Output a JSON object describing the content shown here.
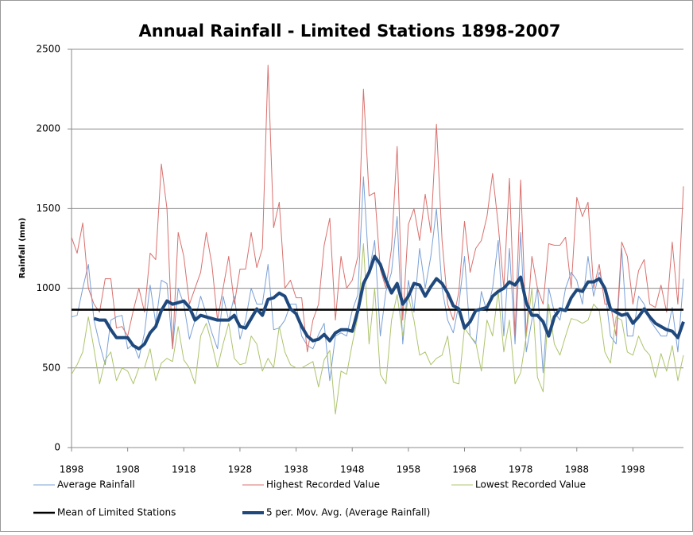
{
  "chart_data": {
    "type": "line",
    "title": "Annual Rainfall - Limited Stations 1898-2007",
    "y_label": "Rainfall (mm)",
    "x": [
      1898,
      1899,
      1900,
      1901,
      1902,
      1903,
      1904,
      1905,
      1906,
      1907,
      1908,
      1909,
      1910,
      1911,
      1912,
      1913,
      1914,
      1915,
      1916,
      1917,
      1918,
      1919,
      1920,
      1921,
      1922,
      1923,
      1924,
      1925,
      1926,
      1927,
      1928,
      1929,
      1930,
      1931,
      1932,
      1933,
      1934,
      1935,
      1936,
      1937,
      1938,
      1939,
      1940,
      1941,
      1942,
      1943,
      1944,
      1945,
      1946,
      1947,
      1948,
      1949,
      1950,
      1951,
      1952,
      1953,
      1954,
      1955,
      1956,
      1957,
      1958,
      1959,
      1960,
      1961,
      1962,
      1963,
      1964,
      1965,
      1966,
      1967,
      1968,
      1969,
      1970,
      1971,
      1972,
      1973,
      1974,
      1975,
      1976,
      1977,
      1978,
      1979,
      1980,
      1981,
      1982,
      1983,
      1984,
      1985,
      1986,
      1987,
      1988,
      1989,
      1990,
      1991,
      1992,
      1993,
      1994,
      1995,
      1996,
      1997,
      1998,
      1999,
      2000,
      2001,
      2002,
      2003,
      2004,
      2005,
      2006,
      2007
    ],
    "xlim": [
      1898,
      2007
    ],
    "xticks": [
      1898,
      1908,
      1918,
      1928,
      1938,
      1948,
      1958,
      1968,
      1978,
      1988,
      1998
    ],
    "ylim": [
      0,
      2500
    ],
    "yticks": [
      0,
      500,
      1000,
      1500,
      2000,
      2500
    ],
    "grid": true,
    "series": [
      {
        "name": "Average Rainfall",
        "color": "#7aa0d6",
        "line_width": 1,
        "values": [
          820,
          830,
          1000,
          1150,
          800,
          650,
          520,
          800,
          820,
          830,
          620,
          650,
          560,
          720,
          1020,
          780,
          1050,
          1030,
          620,
          1000,
          900,
          680,
          800,
          950,
          840,
          720,
          620,
          950,
          800,
          950,
          680,
          800,
          1000,
          900,
          900,
          1150,
          740,
          750,
          800,
          900,
          900,
          700,
          640,
          620,
          710,
          780,
          420,
          700,
          720,
          700,
          860,
          960,
          1700,
          1100,
          1300,
          700,
          980,
          1100,
          1450,
          650,
          1050,
          850,
          1250,
          1000,
          1200,
          1500,
          1000,
          800,
          720,
          900,
          1200,
          700,
          650,
          980,
          850,
          1000,
          1300,
          700,
          1250,
          650,
          1350,
          600,
          800,
          1000,
          470,
          1000,
          850,
          800,
          1000,
          1100,
          1050,
          900,
          1200,
          950,
          1100,
          1000,
          700,
          650,
          1250,
          700,
          700,
          950,
          900,
          800,
          750,
          700,
          700,
          880,
          600,
          1060
        ]
      },
      {
        "name": "Highest Recorded Value",
        "color": "#d9706d",
        "line_width": 1,
        "values": [
          1320,
          1220,
          1410,
          1000,
          900,
          850,
          1060,
          1060,
          750,
          760,
          700,
          860,
          1000,
          850,
          1220,
          1180,
          1780,
          1500,
          620,
          1350,
          1200,
          900,
          1000,
          1100,
          1350,
          1150,
          800,
          1000,
          1200,
          900,
          1120,
          1120,
          1350,
          1130,
          1250,
          2400,
          1380,
          1540,
          1000,
          1050,
          940,
          940,
          600,
          800,
          900,
          1270,
          1440,
          800,
          1200,
          1000,
          1050,
          1200,
          2250,
          1580,
          1600,
          1120,
          1000,
          1250,
          1890,
          800,
          1400,
          1500,
          1300,
          1590,
          1350,
          2030,
          1300,
          900,
          800,
          980,
          1420,
          1100,
          1250,
          1300,
          1450,
          1720,
          1400,
          1000,
          1690,
          700,
          1680,
          700,
          1200,
          1000,
          900,
          1280,
          1270,
          1270,
          1320,
          1000,
          1570,
          1450,
          1540,
          1000,
          1150,
          900,
          900,
          700,
          1290,
          1200,
          900,
          1110,
          1180,
          900,
          880,
          1020,
          850,
          1290,
          900,
          1640
        ]
      },
      {
        "name": "Lowest Recorded Value",
        "color": "#adc46c",
        "line_width": 1,
        "values": [
          460,
          520,
          600,
          820,
          620,
          400,
          550,
          600,
          420,
          500,
          480,
          400,
          500,
          500,
          620,
          420,
          530,
          560,
          540,
          760,
          550,
          500,
          400,
          700,
          780,
          650,
          500,
          650,
          780,
          560,
          520,
          530,
          700,
          650,
          480,
          560,
          500,
          760,
          600,
          520,
          500,
          500,
          520,
          540,
          380,
          550,
          610,
          210,
          480,
          460,
          650,
          820,
          1280,
          650,
          1000,
          460,
          400,
          800,
          960,
          700,
          950,
          800,
          580,
          600,
          520,
          560,
          580,
          700,
          410,
          400,
          750,
          700,
          660,
          480,
          800,
          700,
          980,
          600,
          800,
          400,
          470,
          700,
          1000,
          440,
          350,
          900,
          650,
          580,
          700,
          810,
          800,
          780,
          800,
          900,
          860,
          600,
          530,
          820,
          800,
          600,
          580,
          700,
          620,
          580,
          440,
          590,
          480,
          640,
          420,
          580
        ]
      },
      {
        "name": "Mean of Limited Stations",
        "color": "#000000",
        "line_width": 2.5,
        "constant": 865
      },
      {
        "name": "5 per. Mov. Avg. (Average Rainfall)",
        "color": "#1f497d",
        "line_width": 4,
        "values": [
          null,
          null,
          null,
          null,
          810,
          800,
          800,
          740,
          690,
          690,
          690,
          640,
          620,
          650,
          720,
          760,
          860,
          920,
          900,
          910,
          920,
          880,
          800,
          830,
          820,
          810,
          800,
          800,
          800,
          830,
          760,
          750,
          810,
          870,
          830,
          930,
          940,
          970,
          950,
          870,
          840,
          760,
          700,
          670,
          680,
          710,
          670,
          720,
          740,
          740,
          730,
          860,
          1030,
          1100,
          1200,
          1150,
          1050,
          970,
          1030,
          900,
          950,
          1030,
          1020,
          950,
          1010,
          1060,
          1030,
          970,
          890,
          870,
          750,
          790,
          860,
          870,
          880,
          950,
          980,
          1000,
          1040,
          1020,
          1070,
          910,
          830,
          830,
          790,
          700,
          820,
          870,
          860,
          940,
          990,
          980,
          1040,
          1040,
          1060,
          1000,
          870,
          850,
          830,
          840,
          780,
          820,
          870,
          820,
          780,
          760,
          740,
          730,
          690,
          790
        ]
      }
    ]
  }
}
